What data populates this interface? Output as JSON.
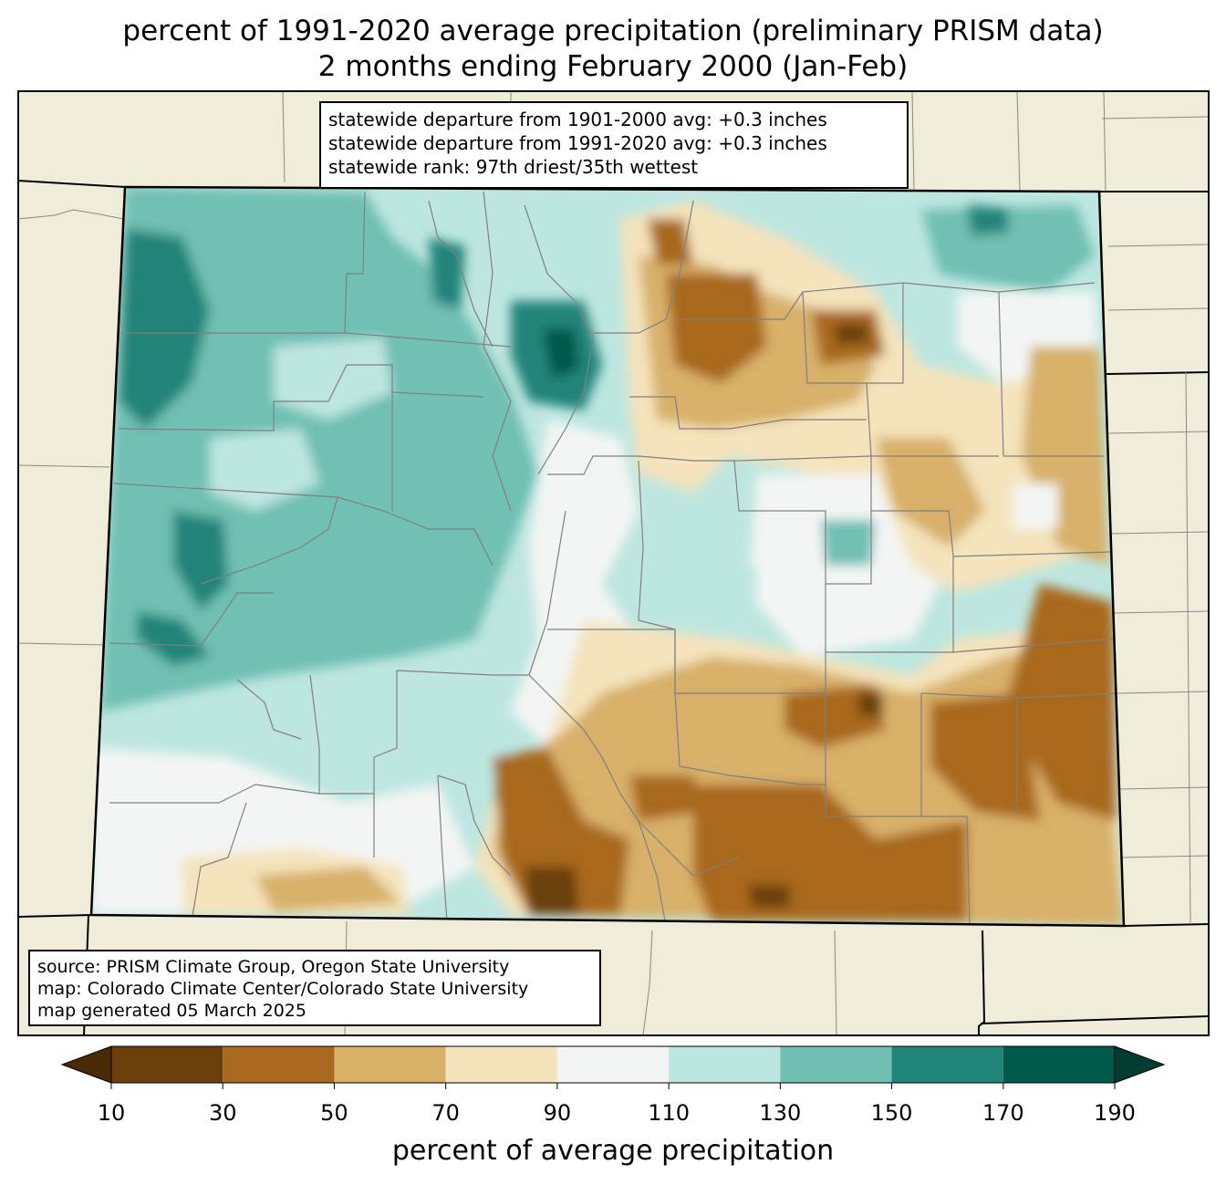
{
  "title": {
    "line1": "percent of 1991-2020 average precipitation (preliminary PRISM data)",
    "line2": "2 months ending February 2000 (Jan-Feb)"
  },
  "stats": {
    "line1": "statewide departure from 1901-2000 avg: +0.3 inches",
    "line2": "statewide departure from 1991-2020 avg: +0.3 inches",
    "line3": "statewide rank: 97th driest/35th wettest"
  },
  "credits": {
    "line1": "source: PRISM Climate Group, Oregon State University",
    "line2": "map: Colorado Climate Center/Colorado State University",
    "line3": "map generated 05 March 2025"
  },
  "colorbar": {
    "label": "percent of average precipitation",
    "ticks": [
      "10",
      "30",
      "50",
      "70",
      "90",
      "110",
      "130",
      "150",
      "170",
      "190"
    ],
    "colors": [
      "#6b3f0c",
      "#a9691f",
      "#d8b069",
      "#f4e3bb",
      "#f3f5f4",
      "#bde6e0",
      "#6fc0b3",
      "#208479",
      "#00594b"
    ],
    "under_color": "#4a2a05",
    "over_color": "#003c32"
  },
  "legend_colors": {
    "land_outside": "#efedd9",
    "county_lines": "#808080",
    "state_border": "#000000"
  }
}
